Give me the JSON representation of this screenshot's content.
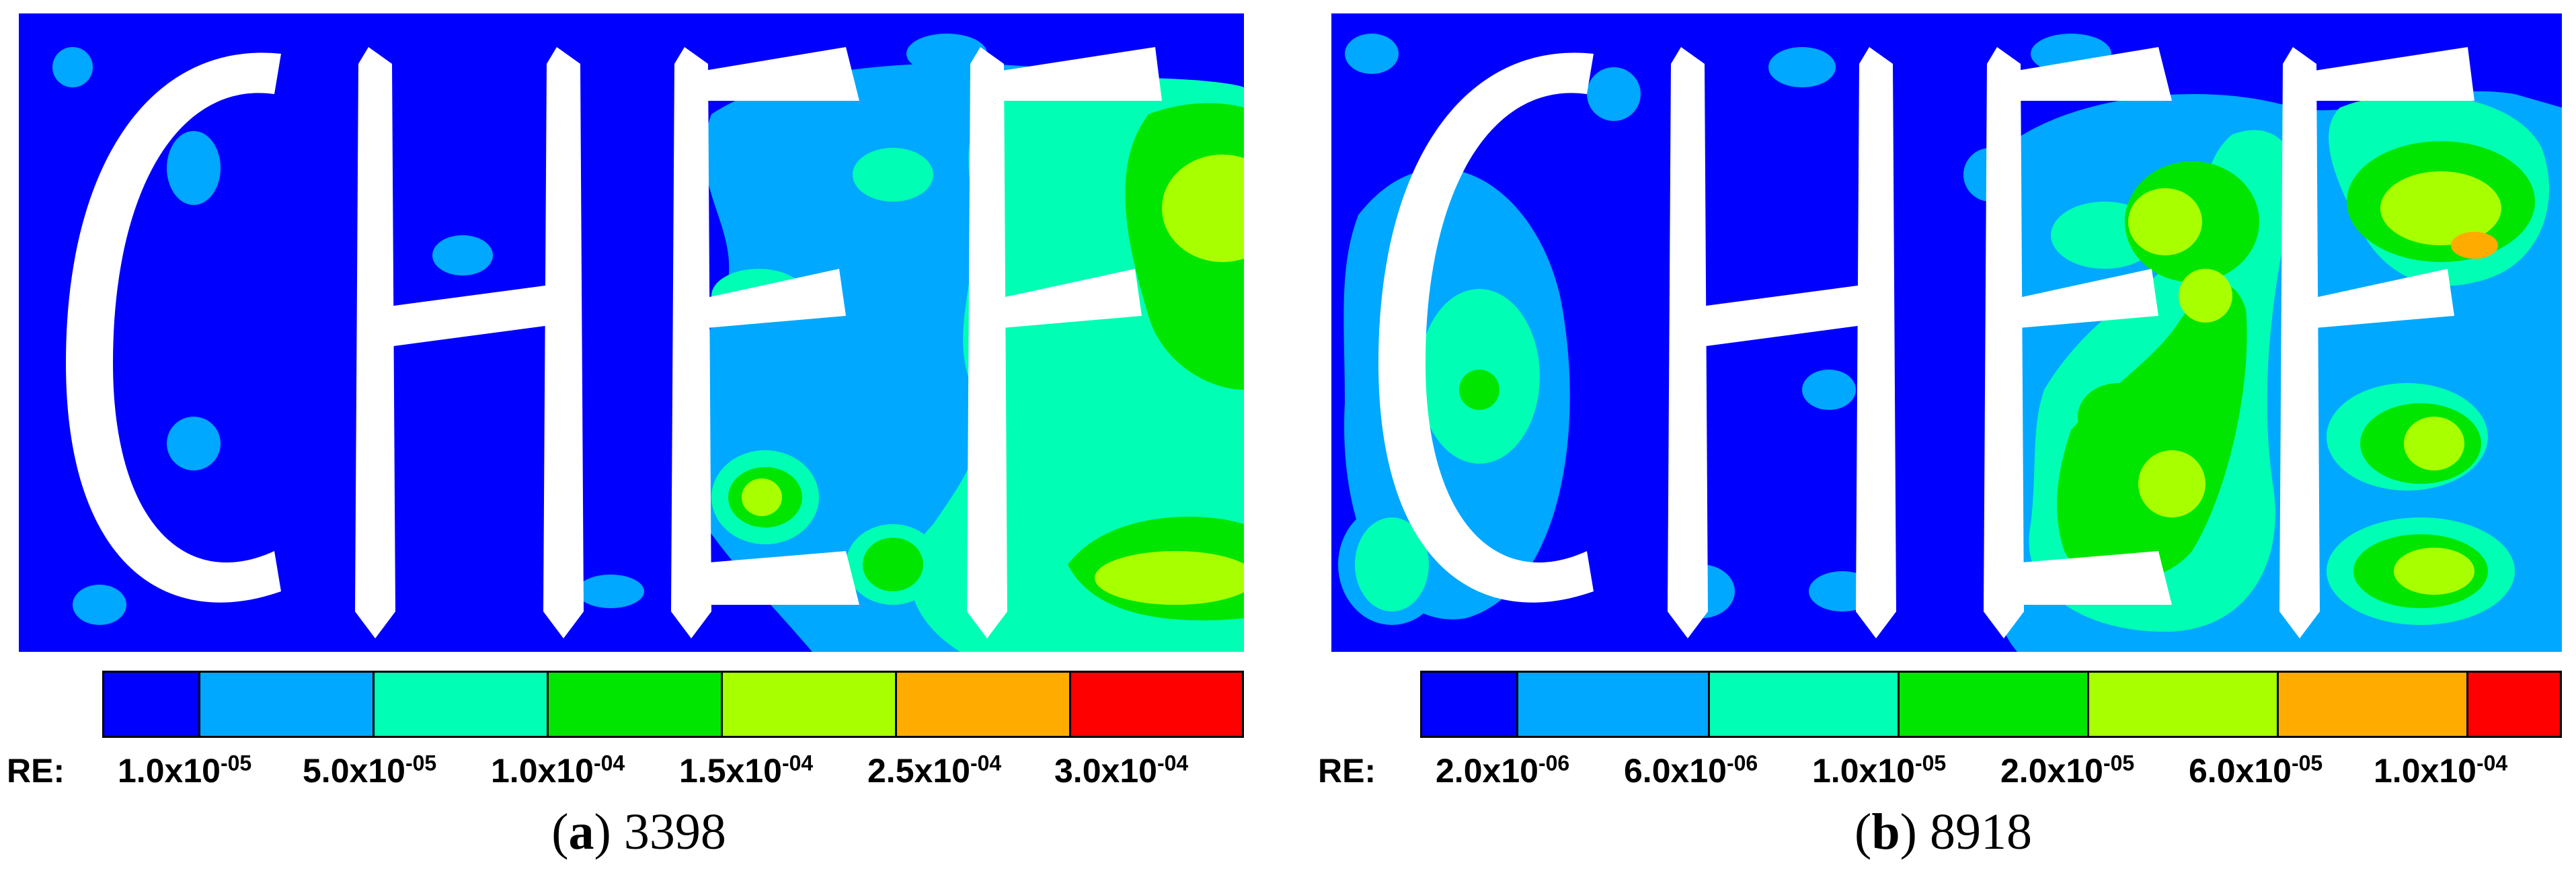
{
  "chart_data": [
    {
      "type": "heatmap",
      "panel_letter": "a",
      "caption_number": "3398",
      "text_in_field": "CHEF",
      "legend_label": "RE:",
      "levels": [
        {
          "mantissa": "1.0x10",
          "exp": "-05",
          "value": 1e-05
        },
        {
          "mantissa": "5.0x10",
          "exp": "-05",
          "value": 5e-05
        },
        {
          "mantissa": "1.0x10",
          "exp": "-04",
          "value": 0.0001
        },
        {
          "mantissa": "1.5x10",
          "exp": "-04",
          "value": 0.00015
        },
        {
          "mantissa": "2.5x10",
          "exp": "-04",
          "value": 0.00025
        },
        {
          "mantissa": "3.0x10",
          "exp": "-04",
          "value": 0.0003
        }
      ],
      "colors": [
        "#0000ff",
        "#00a8ff",
        "#00ffb4",
        "#00e600",
        "#a8ff00",
        "#ffab00",
        "#ff0000"
      ]
    },
    {
      "type": "heatmap",
      "panel_letter": "b",
      "caption_number": "8918",
      "text_in_field": "CHEF",
      "legend_label": "RE:",
      "levels": [
        {
          "mantissa": "2.0x10",
          "exp": "-06",
          "value": 2e-06
        },
        {
          "mantissa": "6.0x10",
          "exp": "-06",
          "value": 6e-06
        },
        {
          "mantissa": "1.0x10",
          "exp": "-05",
          "value": 1e-05
        },
        {
          "mantissa": "2.0x10",
          "exp": "-05",
          "value": 2e-05
        },
        {
          "mantissa": "6.0x10",
          "exp": "-05",
          "value": 6e-05
        },
        {
          "mantissa": "1.0x10",
          "exp": "-04",
          "value": 0.0001
        }
      ],
      "colors": [
        "#0000ff",
        "#00a8ff",
        "#00ffb4",
        "#00e600",
        "#a8ff00",
        "#ffab00",
        "#ff0000"
      ]
    }
  ]
}
